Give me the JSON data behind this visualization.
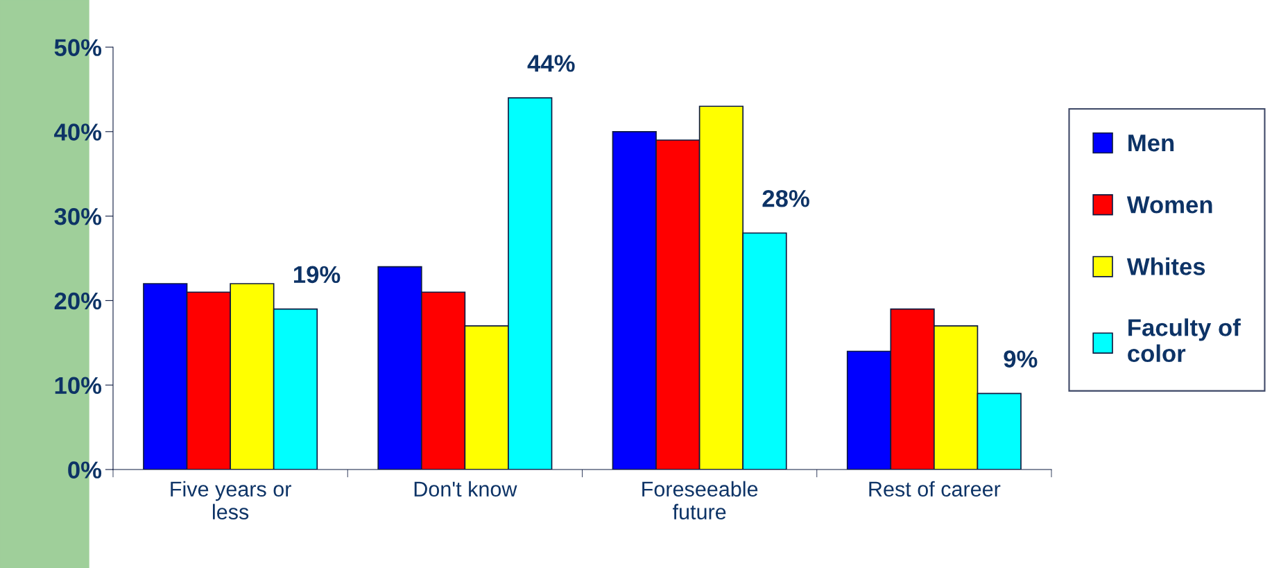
{
  "chart_data": {
    "type": "bar",
    "categories": [
      "Five years or\nless",
      "Don't know",
      "Foreseeable\nfuture",
      "Rest of career"
    ],
    "series": [
      {
        "name": "Men",
        "color": "#0000ff",
        "values": [
          22,
          24,
          40,
          14
        ]
      },
      {
        "name": "Women",
        "color": "#ff0000",
        "values": [
          21,
          21,
          39,
          19
        ]
      },
      {
        "name": "Whites",
        "color": "#ffff00",
        "values": [
          22,
          17,
          43,
          17
        ]
      },
      {
        "name": "Faculty of\ncolor",
        "color": "#00ffff",
        "values": [
          19,
          44,
          28,
          9
        ],
        "value_labels": [
          "19%",
          "44%",
          "28%",
          "9%"
        ]
      }
    ],
    "ylim": [
      0,
      50
    ],
    "yticks": [
      {
        "value": 0,
        "label": "0%"
      },
      {
        "value": 10,
        "label": "10%"
      },
      {
        "value": 20,
        "label": "20%"
      },
      {
        "value": 30,
        "label": "30%"
      },
      {
        "value": 40,
        "label": "40%"
      },
      {
        "value": 50,
        "label": "50%"
      }
    ],
    "grid": false,
    "legend": "right"
  }
}
